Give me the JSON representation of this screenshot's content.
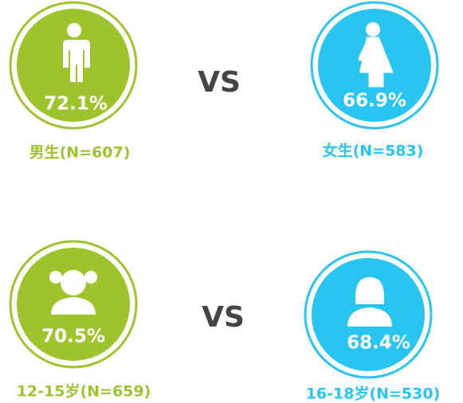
{
  "comparisons": [
    {
      "left": {
        "value": "72.1%",
        "label": "男生(N=607)"
      },
      "vs": "VS",
      "right": {
        "value": "66.9%",
        "label": "女生(N=583)"
      }
    },
    {
      "left": {
        "value": "70.5%",
        "label": "12-15岁(N=659)"
      },
      "vs": "VS",
      "right": {
        "value": "68.4%",
        "label": "16-18岁(N=530)"
      }
    }
  ]
}
